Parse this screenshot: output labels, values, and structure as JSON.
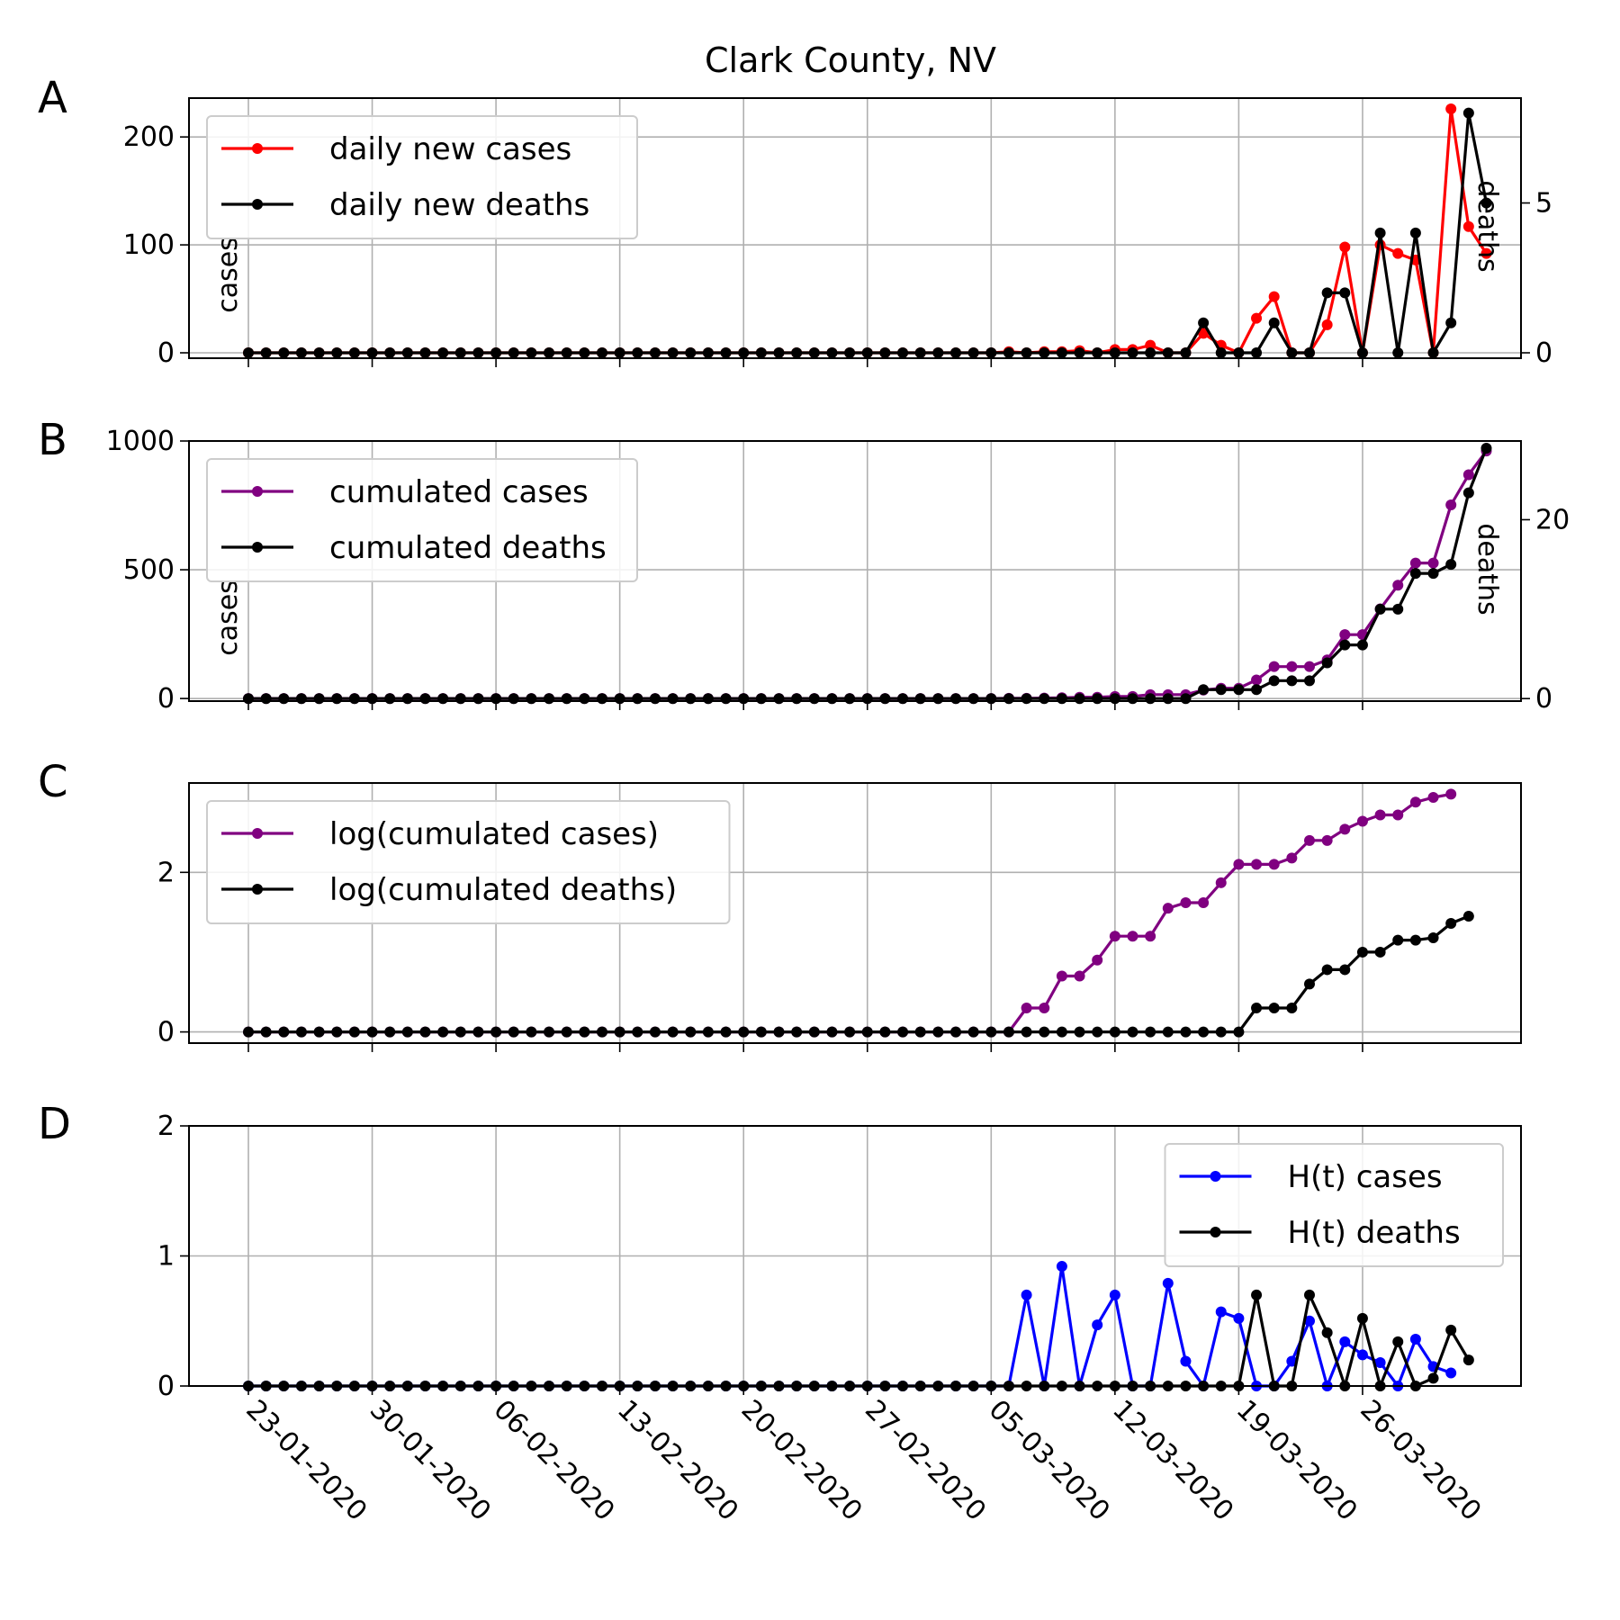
{
  "figure": {
    "title": "Clark County, NV"
  },
  "x_tick_labels": [
    "23-01-2020",
    "30-01-2020",
    "06-02-2020",
    "13-02-2020",
    "20-02-2020",
    "27-02-2020",
    "05-03-2020",
    "12-03-2020",
    "19-03-2020",
    "26-03-2020"
  ],
  "chart_data": [
    {
      "panel": "A",
      "type": "line",
      "x_start": "2020-01-23",
      "x_end": "2020-03-31",
      "ylabel": "cases",
      "ylabel_right": "deaths",
      "y_ticks": [
        0,
        100,
        200
      ],
      "y_ticks_right": [
        0,
        5
      ],
      "ylim": [
        -5,
        236
      ],
      "ylim_right": [
        -0.18,
        8.5
      ],
      "grid": true,
      "legend": "upper-left",
      "series": [
        {
          "name": "daily new cases",
          "color": "#ff0000",
          "axis": "left",
          "values": [
            0,
            0,
            0,
            0,
            0,
            0,
            0,
            0,
            0,
            0,
            0,
            0,
            0,
            0,
            0,
            0,
            0,
            0,
            0,
            0,
            0,
            0,
            0,
            0,
            0,
            0,
            0,
            0,
            0,
            0,
            0,
            0,
            0,
            0,
            0,
            0,
            0,
            0,
            0,
            0,
            0,
            0,
            0,
            1,
            0,
            1,
            1,
            2,
            0,
            3,
            3,
            7,
            0,
            0,
            18,
            7,
            0,
            32,
            52,
            0,
            0,
            26,
            98,
            0,
            100,
            92,
            86,
            0,
            226,
            117,
            92
          ]
        },
        {
          "name": "daily new deaths",
          "color": "#000000",
          "axis": "right",
          "values": [
            0,
            0,
            0,
            0,
            0,
            0,
            0,
            0,
            0,
            0,
            0,
            0,
            0,
            0,
            0,
            0,
            0,
            0,
            0,
            0,
            0,
            0,
            0,
            0,
            0,
            0,
            0,
            0,
            0,
            0,
            0,
            0,
            0,
            0,
            0,
            0,
            0,
            0,
            0,
            0,
            0,
            0,
            0,
            0,
            0,
            0,
            0,
            0,
            0,
            0,
            0,
            0,
            0,
            0,
            1,
            0,
            0,
            0,
            1,
            0,
            0,
            2,
            2,
            0,
            4,
            0,
            4,
            0,
            1,
            8,
            5
          ]
        }
      ]
    },
    {
      "panel": "B",
      "type": "line",
      "x_start": "2020-01-23",
      "x_end": "2020-03-31",
      "ylabel": "cases",
      "ylabel_right": "deaths",
      "y_ticks": [
        0,
        500,
        1000
      ],
      "y_ticks_right": [
        0,
        20
      ],
      "ylim": [
        -10,
        1000
      ],
      "ylim_right": [
        -0.28,
        28.8
      ],
      "grid": true,
      "legend": "upper-left",
      "series": [
        {
          "name": "cumulated cases",
          "color": "#800080",
          "axis": "left",
          "values": [
            0,
            0,
            0,
            0,
            0,
            0,
            0,
            0,
            0,
            0,
            0,
            0,
            0,
            0,
            0,
            0,
            0,
            0,
            0,
            0,
            0,
            0,
            0,
            0,
            0,
            0,
            0,
            0,
            0,
            0,
            0,
            0,
            0,
            0,
            0,
            0,
            0,
            0,
            0,
            0,
            0,
            0,
            0,
            1,
            1,
            2,
            3,
            5,
            5,
            8,
            8,
            15,
            15,
            15,
            33,
            40,
            40,
            72,
            124,
            124,
            124,
            150,
            248,
            248,
            348,
            440,
            526,
            526,
            752,
            869,
            961
          ]
        },
        {
          "name": "cumulated deaths",
          "color": "#000000",
          "axis": "right",
          "values": [
            0,
            0,
            0,
            0,
            0,
            0,
            0,
            0,
            0,
            0,
            0,
            0,
            0,
            0,
            0,
            0,
            0,
            0,
            0,
            0,
            0,
            0,
            0,
            0,
            0,
            0,
            0,
            0,
            0,
            0,
            0,
            0,
            0,
            0,
            0,
            0,
            0,
            0,
            0,
            0,
            0,
            0,
            0,
            0,
            0,
            0,
            0,
            0,
            0,
            0,
            0,
            0,
            0,
            0,
            1,
            1,
            1,
            1,
            2,
            2,
            2,
            4,
            6,
            6,
            10,
            10,
            14,
            14,
            15,
            23,
            28
          ]
        }
      ]
    },
    {
      "panel": "C",
      "type": "line",
      "x_start": "2020-01-23",
      "x_end": "2020-03-31",
      "y_ticks": [
        0,
        2
      ],
      "ylim": [
        -0.14,
        3.12
      ],
      "grid": true,
      "legend": "upper-left",
      "series": [
        {
          "name": "log(cumulated cases)",
          "color": "#800080",
          "values": [
            0,
            0,
            0,
            0,
            0,
            0,
            0,
            0,
            0,
            0,
            0,
            0,
            0,
            0,
            0,
            0,
            0,
            0,
            0,
            0,
            0,
            0,
            0,
            0,
            0,
            0,
            0,
            0,
            0,
            0,
            0,
            0,
            0,
            0,
            0,
            0,
            0,
            0,
            0,
            0,
            0,
            0,
            0,
            0,
            0.3,
            0.3,
            0.7,
            0.7,
            0.9,
            1.2,
            1.2,
            1.2,
            1.55,
            1.62,
            1.62,
            1.87,
            2.1,
            2.1,
            2.1,
            2.18,
            2.4,
            2.4,
            2.54,
            2.64,
            2.72,
            2.72,
            2.88,
            2.94,
            2.98
          ]
        },
        {
          "name": "log(cumulated deaths)",
          "color": "#000000",
          "values": [
            0,
            0,
            0,
            0,
            0,
            0,
            0,
            0,
            0,
            0,
            0,
            0,
            0,
            0,
            0,
            0,
            0,
            0,
            0,
            0,
            0,
            0,
            0,
            0,
            0,
            0,
            0,
            0,
            0,
            0,
            0,
            0,
            0,
            0,
            0,
            0,
            0,
            0,
            0,
            0,
            0,
            0,
            0,
            0,
            0,
            0,
            0,
            0,
            0,
            0,
            0,
            0,
            0,
            0,
            0,
            0,
            0,
            0.3,
            0.3,
            0.3,
            0.6,
            0.78,
            0.78,
            1.0,
            1.0,
            1.15,
            1.15,
            1.18,
            1.36,
            1.45
          ]
        }
      ]
    },
    {
      "panel": "D",
      "type": "line",
      "x_start": "2020-01-23",
      "x_end": "2020-03-31",
      "y_ticks": [
        0,
        1,
        2
      ],
      "ylim": [
        0,
        2
      ],
      "grid": true,
      "legend": "upper-right",
      "series": [
        {
          "name": "H(t) cases",
          "color": "#0000ff",
          "values": [
            0,
            0,
            0,
            0,
            0,
            0,
            0,
            0,
            0,
            0,
            0,
            0,
            0,
            0,
            0,
            0,
            0,
            0,
            0,
            0,
            0,
            0,
            0,
            0,
            0,
            0,
            0,
            0,
            0,
            0,
            0,
            0,
            0,
            0,
            0,
            0,
            0,
            0,
            0,
            0,
            0,
            0,
            0,
            0,
            0.7,
            0,
            0.92,
            0,
            0.47,
            0.7,
            0,
            0,
            0.79,
            0.19,
            0,
            0.57,
            0.52,
            0,
            0,
            0.19,
            0.5,
            0,
            0.34,
            0.24,
            0.18,
            0,
            0.36,
            0.15,
            0.1
          ]
        },
        {
          "name": "H(t) deaths",
          "color": "#000000",
          "values": [
            0,
            0,
            0,
            0,
            0,
            0,
            0,
            0,
            0,
            0,
            0,
            0,
            0,
            0,
            0,
            0,
            0,
            0,
            0,
            0,
            0,
            0,
            0,
            0,
            0,
            0,
            0,
            0,
            0,
            0,
            0,
            0,
            0,
            0,
            0,
            0,
            0,
            0,
            0,
            0,
            0,
            0,
            0,
            0,
            0,
            0,
            0,
            0,
            0,
            0,
            0,
            0,
            0,
            0,
            0,
            0,
            0,
            0.7,
            0,
            0,
            0.7,
            0.41,
            0,
            0.52,
            0,
            0.34,
            0,
            0.06,
            0.43,
            0.2
          ]
        }
      ]
    }
  ]
}
